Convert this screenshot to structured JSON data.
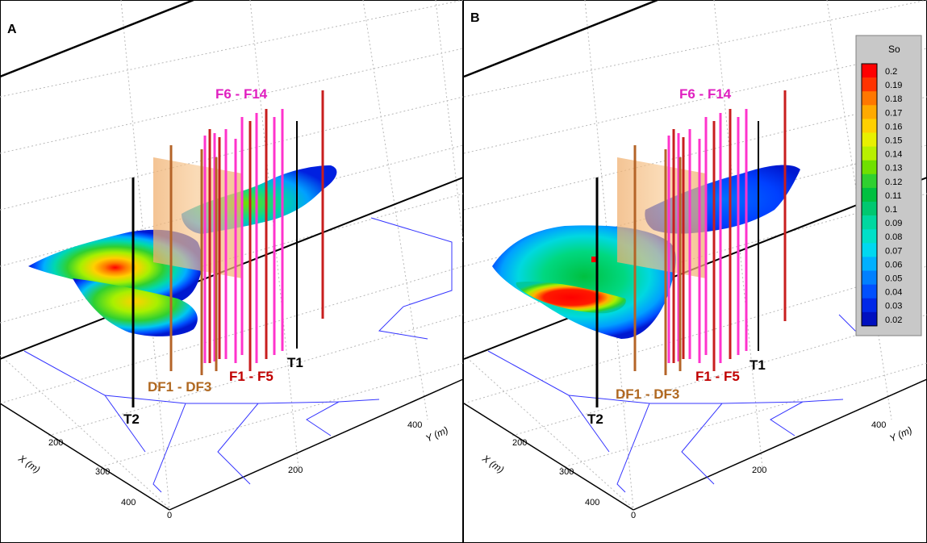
{
  "panels": [
    {
      "letter": "A",
      "labels": {
        "f6_f14": "F6 - F14",
        "f1_f5": "F1 - F5",
        "df1_df3": "DF1 - DF3",
        "t1": "T1",
        "t2": "T2"
      },
      "axes": {
        "x_label": "X (m)",
        "y_label": "Y (m)",
        "x_ticks": [
          "200",
          "300",
          "400"
        ],
        "y_ticks": [
          "0",
          "200",
          "400"
        ]
      }
    },
    {
      "letter": "B",
      "labels": {
        "f6_f14": "F6 - F14",
        "f1_f5": "F1 - F5",
        "df1_df3": "DF1 - DF3",
        "t1": "T1",
        "t2": "T2"
      },
      "axes": {
        "x_label": "X (m)",
        "y_label": "Y (m)",
        "x_ticks": [
          "200",
          "300",
          "400"
        ],
        "y_ticks": [
          "0",
          "200",
          "400"
        ]
      }
    }
  ],
  "colorbar": {
    "title": "So",
    "ticks": [
      "0.2",
      "0.19",
      "0.18",
      "0.17",
      "0.16",
      "0.15",
      "0.14",
      "0.13",
      "0.12",
      "0.11",
      "0.1",
      "0.09",
      "0.08",
      "0.07",
      "0.06",
      "0.05",
      "0.04",
      "0.03",
      "0.02"
    ],
    "colors": [
      "#ff0000",
      "#ff3300",
      "#ff7700",
      "#ffaa00",
      "#ffd000",
      "#e8f000",
      "#b8f000",
      "#70e000",
      "#30d030",
      "#00c040",
      "#00c870",
      "#00d8a0",
      "#00e0c8",
      "#00d8f0",
      "#00b0ff",
      "#0080ff",
      "#0050ff",
      "#0028e8",
      "#0010c0"
    ]
  },
  "colors": {
    "fracture_magenta": "#ff33cc",
    "well_red": "#c81e1e",
    "well_brown": "#b46428",
    "well_black": "#000000",
    "label_magenta": "#e020c0",
    "label_red": "#c00000",
    "label_brown": "#b06820",
    "grid": "#b0b0b0",
    "boundary_blue": "#4040ff"
  }
}
